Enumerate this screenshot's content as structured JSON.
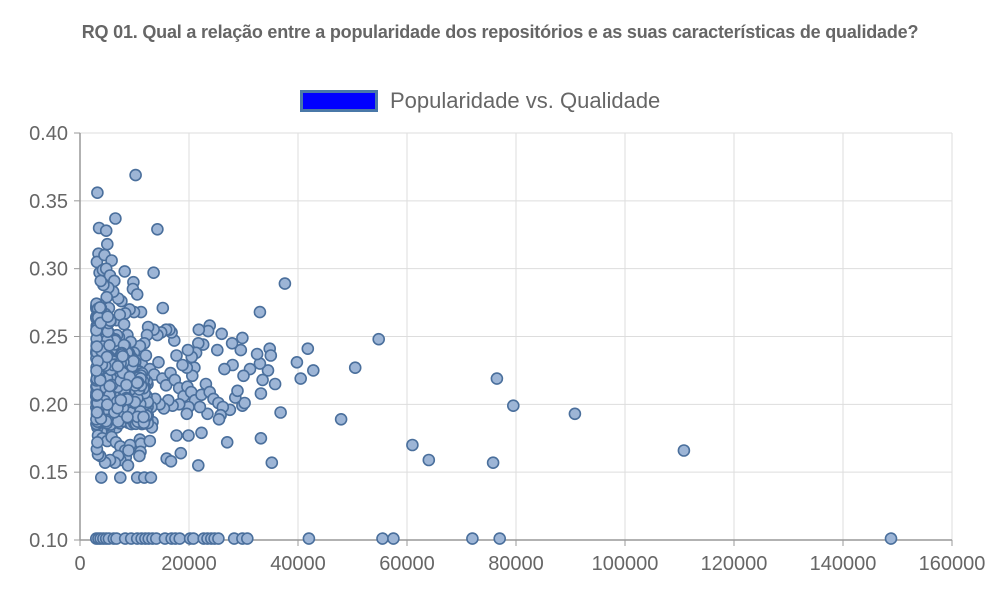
{
  "chart_title": "RQ 01. Qual a relação entre a popularidade dos repositórios e as suas características de qualidade?",
  "legend": {
    "label": "Popularidade vs. Qualidade",
    "fill_color": "#0000ff",
    "border_color": "#4a78a8"
  },
  "colors": {
    "point_fill": "#9db5d6",
    "point_stroke": "#4a6f9c",
    "grid": "#dddddd",
    "axis": "#999999",
    "tick_text": "#666666"
  },
  "chart_data": {
    "type": "scatter",
    "title": "RQ 01. Qual a relação entre a popularidade dos repositórios e as suas características de qualidade?",
    "xlabel": "",
    "ylabel": "",
    "xlim": [
      0,
      160000
    ],
    "ylim": [
      0.1,
      0.4
    ],
    "x_ticks": [
      "0",
      "20000",
      "40000",
      "60000",
      "80000",
      "100000",
      "120000",
      "140000",
      "160000"
    ],
    "y_ticks": [
      "0.10",
      "0.15",
      "0.20",
      "0.25",
      "0.30",
      "0.35",
      "0.40"
    ],
    "grid": true,
    "legend_position": "top-center",
    "series": [
      {
        "name": "Popularidade vs. Qualidade",
        "points": [
          [
            3200,
            0.356
          ],
          [
            10200,
            0.369
          ],
          [
            6500,
            0.337
          ],
          [
            3500,
            0.33
          ],
          [
            4800,
            0.328
          ],
          [
            14200,
            0.329
          ],
          [
            5000,
            0.318
          ],
          [
            3400,
            0.311
          ],
          [
            3100,
            0.305
          ],
          [
            4500,
            0.31
          ],
          [
            5800,
            0.306
          ],
          [
            8200,
            0.298
          ],
          [
            13500,
            0.297
          ],
          [
            3600,
            0.297
          ],
          [
            4200,
            0.299
          ],
          [
            4800,
            0.3
          ],
          [
            5500,
            0.295
          ],
          [
            6300,
            0.291
          ],
          [
            9800,
            0.29
          ],
          [
            9700,
            0.285
          ],
          [
            10500,
            0.281
          ],
          [
            15200,
            0.271
          ],
          [
            37600,
            0.289
          ],
          [
            33000,
            0.268
          ],
          [
            54800,
            0.248
          ],
          [
            41800,
            0.241
          ],
          [
            39800,
            0.231
          ],
          [
            42800,
            0.225
          ],
          [
            40500,
            0.219
          ],
          [
            50500,
            0.227
          ],
          [
            76500,
            0.219
          ],
          [
            79500,
            0.199
          ],
          [
            90800,
            0.193
          ],
          [
            47900,
            0.189
          ],
          [
            36800,
            0.194
          ],
          [
            35200,
            0.157
          ],
          [
            33200,
            0.175
          ],
          [
            61000,
            0.17
          ],
          [
            64000,
            0.159
          ],
          [
            75800,
            0.157
          ],
          [
            110800,
            0.166
          ],
          [
            34800,
            0.241
          ],
          [
            35000,
            0.236
          ],
          [
            34500,
            0.225
          ],
          [
            35800,
            0.215
          ],
          [
            33000,
            0.23
          ],
          [
            33500,
            0.218
          ],
          [
            32500,
            0.237
          ],
          [
            31200,
            0.226
          ],
          [
            30000,
            0.221
          ],
          [
            33200,
            0.208
          ],
          [
            29800,
            0.199
          ],
          [
            30200,
            0.201
          ],
          [
            28500,
            0.205
          ],
          [
            27500,
            0.196
          ],
          [
            28900,
            0.21
          ],
          [
            29500,
            0.24
          ],
          [
            29800,
            0.249
          ],
          [
            27900,
            0.245
          ],
          [
            28000,
            0.229
          ],
          [
            26500,
            0.226
          ],
          [
            26000,
            0.252
          ],
          [
            25200,
            0.24
          ],
          [
            23800,
            0.258
          ],
          [
            23500,
            0.254
          ],
          [
            22600,
            0.244
          ],
          [
            21800,
            0.255
          ],
          [
            21700,
            0.245
          ],
          [
            21300,
            0.238
          ],
          [
            20500,
            0.235
          ],
          [
            19800,
            0.24
          ],
          [
            21000,
            0.227
          ],
          [
            20600,
            0.221
          ],
          [
            19600,
            0.227
          ],
          [
            18800,
            0.229
          ],
          [
            17700,
            0.236
          ],
          [
            17300,
            0.247
          ],
          [
            16800,
            0.253
          ],
          [
            16400,
            0.255
          ],
          [
            15800,
            0.255
          ],
          [
            14900,
            0.253
          ],
          [
            14200,
            0.251
          ],
          [
            13500,
            0.255
          ],
          [
            12500,
            0.257
          ],
          [
            12300,
            0.251
          ],
          [
            11800,
            0.245
          ],
          [
            11000,
            0.243
          ],
          [
            11200,
            0.268
          ],
          [
            9900,
            0.268
          ],
          [
            9100,
            0.27
          ],
          [
            8300,
            0.267
          ],
          [
            7600,
            0.276
          ],
          [
            7000,
            0.278
          ],
          [
            6100,
            0.283
          ],
          [
            5200,
            0.286
          ],
          [
            4300,
            0.288
          ],
          [
            3800,
            0.291
          ],
          [
            4900,
            0.279
          ],
          [
            5300,
            0.271
          ],
          [
            6700,
            0.262
          ],
          [
            7300,
            0.266
          ],
          [
            8100,
            0.259
          ],
          [
            8700,
            0.251
          ],
          [
            9300,
            0.246
          ],
          [
            9900,
            0.238
          ],
          [
            10600,
            0.232
          ],
          [
            11400,
            0.229
          ],
          [
            12100,
            0.236
          ],
          [
            12800,
            0.226
          ],
          [
            13600,
            0.222
          ],
          [
            14400,
            0.231
          ],
          [
            15100,
            0.219
          ],
          [
            15800,
            0.214
          ],
          [
            16600,
            0.223
          ],
          [
            17400,
            0.218
          ],
          [
            18200,
            0.212
          ],
          [
            19000,
            0.206
          ],
          [
            19700,
            0.213
          ],
          [
            20400,
            0.209
          ],
          [
            21100,
            0.203
          ],
          [
            22300,
            0.207
          ],
          [
            23100,
            0.215
          ],
          [
            23800,
            0.209
          ],
          [
            24500,
            0.204
          ],
          [
            25400,
            0.201
          ],
          [
            26200,
            0.198
          ],
          [
            25800,
            0.192
          ],
          [
            23400,
            0.193
          ],
          [
            22000,
            0.198
          ],
          [
            19900,
            0.198
          ],
          [
            19600,
            0.193
          ],
          [
            18200,
            0.2
          ],
          [
            17000,
            0.199
          ],
          [
            16200,
            0.203
          ],
          [
            15400,
            0.197
          ],
          [
            14600,
            0.2
          ],
          [
            13800,
            0.204
          ],
          [
            13100,
            0.198
          ],
          [
            12400,
            0.201
          ],
          [
            11700,
            0.196
          ],
          [
            11000,
            0.199
          ],
          [
            10300,
            0.194
          ],
          [
            9600,
            0.192
          ],
          [
            8800,
            0.19
          ],
          [
            8100,
            0.194
          ],
          [
            7400,
            0.188
          ],
          [
            6700,
            0.183
          ],
          [
            6000,
            0.186
          ],
          [
            5300,
            0.181
          ],
          [
            4600,
            0.184
          ],
          [
            3900,
            0.18
          ],
          [
            3200,
            0.183
          ],
          [
            3300,
            0.177
          ],
          [
            4100,
            0.175
          ],
          [
            5000,
            0.173
          ],
          [
            5800,
            0.176
          ],
          [
            6600,
            0.172
          ],
          [
            7400,
            0.169
          ],
          [
            8300,
            0.166
          ],
          [
            9200,
            0.17
          ],
          [
            11000,
            0.174
          ],
          [
            11200,
            0.171
          ],
          [
            13300,
            0.187
          ],
          [
            13200,
            0.183
          ],
          [
            12800,
            0.173
          ],
          [
            11100,
            0.165
          ],
          [
            10900,
            0.162
          ],
          [
            8400,
            0.161
          ],
          [
            7400,
            0.159
          ],
          [
            7000,
            0.162
          ],
          [
            6400,
            0.157
          ],
          [
            5500,
            0.159
          ],
          [
            4600,
            0.157
          ],
          [
            3700,
            0.162
          ],
          [
            3300,
            0.163
          ],
          [
            3100,
            0.167
          ],
          [
            3200,
            0.172
          ],
          [
            3900,
            0.146
          ],
          [
            7400,
            0.146
          ],
          [
            10500,
            0.146
          ],
          [
            11800,
            0.146
          ],
          [
            13000,
            0.146
          ],
          [
            15900,
            0.16
          ],
          [
            16700,
            0.158
          ],
          [
            17700,
            0.177
          ],
          [
            18500,
            0.164
          ],
          [
            19900,
            0.177
          ],
          [
            21700,
            0.155
          ],
          [
            22300,
            0.179
          ],
          [
            27000,
            0.172
          ],
          [
            25500,
            0.189
          ],
          [
            8800,
            0.155
          ],
          [
            8900,
            0.166
          ],
          [
            3000,
            0.101
          ],
          [
            3400,
            0.101
          ],
          [
            3800,
            0.101
          ],
          [
            4300,
            0.101
          ],
          [
            4800,
            0.101
          ],
          [
            5300,
            0.101
          ],
          [
            6200,
            0.101
          ],
          [
            6700,
            0.101
          ],
          [
            8300,
            0.101
          ],
          [
            9400,
            0.101
          ],
          [
            10500,
            0.101
          ],
          [
            11300,
            0.101
          ],
          [
            12000,
            0.101
          ],
          [
            12600,
            0.101
          ],
          [
            13300,
            0.101
          ],
          [
            14000,
            0.101
          ],
          [
            15600,
            0.101
          ],
          [
            16800,
            0.101
          ],
          [
            17500,
            0.101
          ],
          [
            18300,
            0.101
          ],
          [
            20200,
            0.101
          ],
          [
            20800,
            0.101
          ],
          [
            22700,
            0.101
          ],
          [
            23400,
            0.101
          ],
          [
            24100,
            0.101
          ],
          [
            24700,
            0.101
          ],
          [
            25400,
            0.101
          ],
          [
            28300,
            0.101
          ],
          [
            29800,
            0.101
          ],
          [
            30700,
            0.101
          ],
          [
            42000,
            0.101
          ],
          [
            55500,
            0.101
          ],
          [
            57500,
            0.101
          ],
          [
            72000,
            0.101
          ],
          [
            77000,
            0.101
          ],
          [
            148800,
            0.101
          ]
        ]
      }
    ]
  }
}
